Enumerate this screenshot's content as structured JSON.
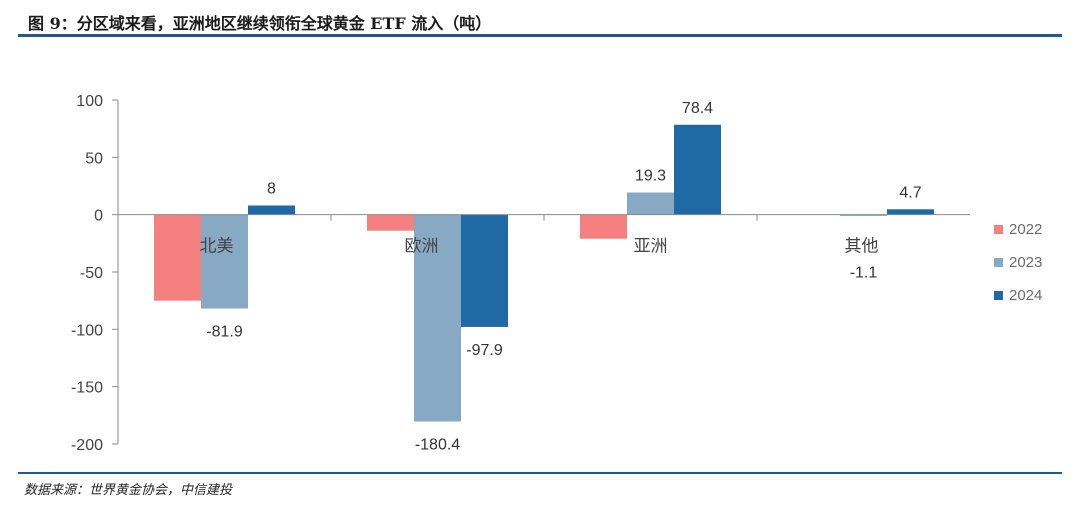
{
  "title": "图 9：分区域来看，亚洲地区继续领衔全球黄金 ETF 流入（吨）",
  "source": "数据来源：世界黄金协会，中信建投",
  "colors": {
    "s2022": "#f58080",
    "s2023": "#87a9c3",
    "s2024": "#1f6aa5",
    "rule": "#1f5a8f"
  },
  "chart_data": {
    "type": "bar",
    "categories": [
      "北美",
      "欧洲",
      "亚洲",
      "其他"
    ],
    "series": [
      {
        "name": "2022",
        "values": [
          -75,
          -14,
          -21,
          0
        ]
      },
      {
        "name": "2023",
        "values": [
          -81.9,
          -180.4,
          19.3,
          -1.1
        ]
      },
      {
        "name": "2024",
        "values": [
          8,
          -97.9,
          78.4,
          4.7
        ]
      }
    ],
    "data_labels": [
      {
        "text": "8",
        "series": 2,
        "category": 0
      },
      {
        "text": "-81.9",
        "series": 1,
        "category": 0
      },
      {
        "text": "-180.4",
        "series": 1,
        "category": 1
      },
      {
        "text": "-97.9",
        "series": 2,
        "category": 1
      },
      {
        "text": "19.3",
        "series": 1,
        "category": 2
      },
      {
        "text": "78.4",
        "series": 2,
        "category": 2
      },
      {
        "text": "-1.1",
        "series": 1,
        "category": 3
      },
      {
        "text": "4.7",
        "series": 2,
        "category": 3
      }
    ],
    "yticks": [
      "100",
      "50",
      "0",
      "-50",
      "-100",
      "-150",
      "-200"
    ],
    "ylim": [
      -200,
      100
    ],
    "legend_position": "right"
  }
}
